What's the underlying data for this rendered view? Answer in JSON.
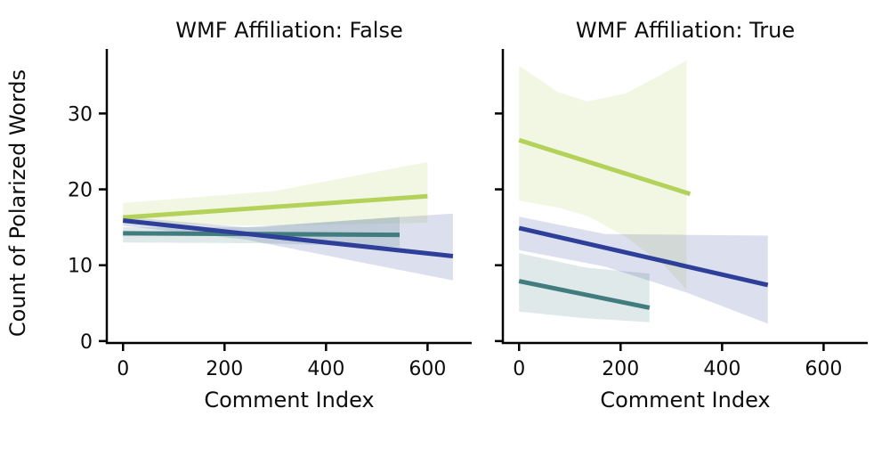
{
  "chart_data": {
    "type": "line",
    "title": "",
    "xlabel": "Comment Index",
    "ylabel": "Count of Polarized Words",
    "xticks": [
      0,
      200,
      400,
      600
    ],
    "yticks": [
      0,
      10,
      20,
      30
    ],
    "xlim": [
      -32,
      687
    ],
    "ylim": [
      -0.25,
      38.5
    ],
    "grid": false,
    "legend": "none",
    "band_alpha": 0.17,
    "line_width": 5,
    "axis_color": "#000000",
    "facets": [
      {
        "title": "WMF Affiliation: False",
        "series": [
          {
            "name": "yellowgreen",
            "color": "#b4d25a",
            "line": {
              "x": [
                0,
                600
              ],
              "y": [
                16.3,
                19.1
              ]
            },
            "band": {
              "x": [
                0,
                300,
                600
              ],
              "upper": [
                18.2,
                19.8,
                23.6
              ],
              "lower": [
                15.5,
                15.2,
                15.6
              ]
            }
          },
          {
            "name": "teal",
            "color": "#417d7e",
            "line": {
              "x": [
                0,
                545
              ],
              "y": [
                14.2,
                14.0
              ]
            },
            "band": {
              "x": [
                0,
                270,
                545
              ],
              "upper": [
                15.0,
                15.0,
                16.4
              ],
              "lower": [
                13.0,
                12.9,
                12.4
              ]
            }
          },
          {
            "name": "navy",
            "color": "#2d3f99",
            "line": {
              "x": [
                0,
                650
              ],
              "y": [
                15.9,
                11.2
              ]
            },
            "band": {
              "x": [
                0,
                240,
                650
              ],
              "upper": [
                16.4,
                15.0,
                16.8
              ],
              "lower": [
                15.2,
                13.4,
                8.0
              ]
            }
          }
        ]
      },
      {
        "title": "WMF Affiliation: True",
        "series": [
          {
            "name": "yellowgreen",
            "color": "#b4d25a",
            "line": {
              "x": [
                0,
                337
              ],
              "y": [
                26.5,
                19.4
              ]
            },
            "band": {
              "x": [
                0,
                77,
                134,
                209,
                285,
                330
              ],
              "upper": [
                36.3,
                32.8,
                31.6,
                32.6,
                35.3,
                37.0
              ],
              "lower": [
                18.5,
                17.6,
                16.5,
                13.8,
                10.0,
                6.8
              ]
            }
          },
          {
            "name": "teal",
            "color": "#417d7e",
            "line": {
              "x": [
                0,
                257
              ],
              "y": [
                7.9,
                4.4
              ]
            },
            "band": {
              "x": [
                0,
                130,
                257
              ],
              "upper": [
                11.6,
                9.7,
                8.9
              ],
              "lower": [
                3.9,
                3.0,
                2.5
              ]
            }
          },
          {
            "name": "navy",
            "color": "#2d3f99",
            "line": {
              "x": [
                0,
                490
              ],
              "y": [
                14.9,
                7.4
              ]
            },
            "band": {
              "x": [
                0,
                170,
                330,
                490
              ],
              "upper": [
                16.4,
                14.1,
                14.0,
                13.9
              ],
              "lower": [
                12.0,
                9.8,
                6.4,
                2.3
              ]
            }
          }
        ]
      }
    ]
  }
}
